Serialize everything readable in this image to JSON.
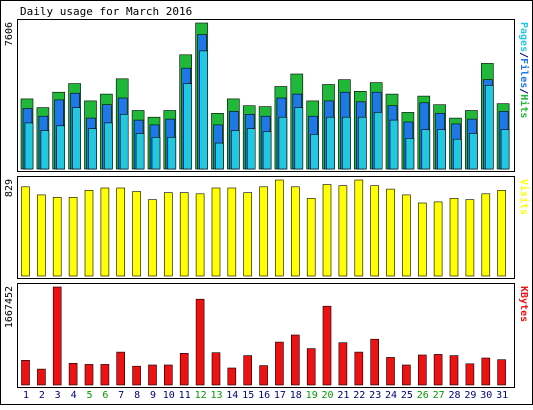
{
  "title": "Daily usage for March 2016",
  "colors": {
    "pages": "#22c8e0",
    "files": "#1f78e8",
    "hits": "#1fb838",
    "visits": "#ffff00",
    "kbytes": "#ee1111",
    "weekend_day": "#009900",
    "weekday_day": "#000080",
    "frame": "#000000",
    "panel_bg": "#ffffff"
  },
  "chart_data": [
    {
      "type": "bar",
      "title": "Daily usage for March 2016",
      "panel": "hits",
      "ymax_label": "7606",
      "ylim": [
        0,
        7606
      ],
      "right_label_parts": [
        {
          "text": "Pages",
          "color_key": "pages"
        },
        {
          "text": "/",
          "color_key": "weekday_day"
        },
        {
          "text": "Files",
          "color_key": "files"
        },
        {
          "text": "/",
          "color_key": "weekday_day"
        },
        {
          "text": "Hits",
          "color_key": "hits"
        }
      ],
      "categories": [
        "1",
        "2",
        "3",
        "4",
        "5",
        "6",
        "7",
        "8",
        "9",
        "10",
        "11",
        "12",
        "13",
        "14",
        "15",
        "16",
        "17",
        "18",
        "19",
        "20",
        "21",
        "22",
        "23",
        "24",
        "25",
        "26",
        "27",
        "28",
        "29",
        "30",
        "31"
      ],
      "series": [
        {
          "name": "Hits",
          "color_key": "hits",
          "values": [
            3650,
            3200,
            4000,
            4450,
            3550,
            3900,
            4700,
            3050,
            2700,
            3050,
            5950,
            7606,
            2900,
            3650,
            3300,
            3250,
            4300,
            4950,
            3550,
            4400,
            4650,
            4050,
            4500,
            3900,
            2950,
            3800,
            3350,
            2650,
            3050,
            5500,
            3400
          ]
        },
        {
          "name": "Files",
          "color_key": "files",
          "values": [
            3150,
            2750,
            3600,
            3950,
            2650,
            3350,
            3700,
            2550,
            2300,
            2600,
            5250,
            7000,
            2300,
            3000,
            2850,
            2750,
            3700,
            3900,
            2750,
            3550,
            4000,
            3500,
            4000,
            3300,
            2450,
            3450,
            2900,
            2350,
            2600,
            4650,
            3000
          ]
        },
        {
          "name": "Pages",
          "color_key": "pages",
          "values": [
            2400,
            2000,
            2250,
            3200,
            2100,
            2400,
            2850,
            1850,
            1650,
            1650,
            4450,
            6150,
            1350,
            2000,
            2100,
            1950,
            2700,
            3200,
            1800,
            2700,
            2700,
            2700,
            2950,
            2550,
            1600,
            2050,
            2050,
            1550,
            1850,
            4350,
            2050
          ]
        }
      ]
    },
    {
      "type": "bar",
      "panel": "visits",
      "ymax_label": "829",
      "ylim": [
        0,
        829
      ],
      "right_label_parts": [
        {
          "text": "Visits",
          "color_key": "visits"
        }
      ],
      "categories": [
        "1",
        "2",
        "3",
        "4",
        "5",
        "6",
        "7",
        "8",
        "9",
        "10",
        "11",
        "12",
        "13",
        "14",
        "15",
        "16",
        "17",
        "18",
        "19",
        "20",
        "21",
        "22",
        "23",
        "24",
        "25",
        "26",
        "27",
        "28",
        "29",
        "30",
        "31"
      ],
      "series": [
        {
          "name": "Visits",
          "color_key": "visits",
          "values": [
            770,
            700,
            680,
            680,
            740,
            760,
            760,
            730,
            660,
            720,
            720,
            710,
            760,
            760,
            720,
            770,
            829,
            770,
            670,
            790,
            780,
            829,
            780,
            750,
            700,
            630,
            640,
            670,
            660,
            710,
            740
          ]
        }
      ]
    },
    {
      "type": "bar",
      "panel": "kbytes",
      "ymax_label": "1667452",
      "ylim": [
        0,
        1667452
      ],
      "right_label_parts": [
        {
          "text": "KBytes",
          "color_key": "kbytes"
        }
      ],
      "categories": [
        "1",
        "2",
        "3",
        "4",
        "5",
        "6",
        "7",
        "8",
        "9",
        "10",
        "11",
        "12",
        "13",
        "14",
        "15",
        "16",
        "17",
        "18",
        "19",
        "20",
        "21",
        "22",
        "23",
        "24",
        "25",
        "26",
        "27",
        "28",
        "29",
        "30",
        "31"
      ],
      "series": [
        {
          "name": "KBytes",
          "color_key": "kbytes",
          "values": [
            420000,
            270000,
            1667452,
            370000,
            350000,
            350000,
            560000,
            320000,
            340000,
            340000,
            540000,
            1460000,
            550000,
            290000,
            500000,
            330000,
            730000,
            850000,
            620000,
            1340000,
            720000,
            560000,
            780000,
            470000,
            340000,
            510000,
            520000,
            500000,
            360000,
            460000,
            430000
          ]
        }
      ]
    }
  ],
  "day_labels": [
    {
      "text": "1",
      "weekend": false
    },
    {
      "text": "2",
      "weekend": false
    },
    {
      "text": "3",
      "weekend": false
    },
    {
      "text": "4",
      "weekend": false
    },
    {
      "text": "5",
      "weekend": true
    },
    {
      "text": "6",
      "weekend": true
    },
    {
      "text": "7",
      "weekend": false
    },
    {
      "text": "8",
      "weekend": false
    },
    {
      "text": "9",
      "weekend": false
    },
    {
      "text": "10",
      "weekend": false
    },
    {
      "text": "11",
      "weekend": false
    },
    {
      "text": "12",
      "weekend": true
    },
    {
      "text": "13",
      "weekend": true
    },
    {
      "text": "14",
      "weekend": false
    },
    {
      "text": "15",
      "weekend": false
    },
    {
      "text": "16",
      "weekend": false
    },
    {
      "text": "17",
      "weekend": false
    },
    {
      "text": "18",
      "weekend": false
    },
    {
      "text": "19",
      "weekend": true
    },
    {
      "text": "20",
      "weekend": true
    },
    {
      "text": "21",
      "weekend": false
    },
    {
      "text": "22",
      "weekend": false
    },
    {
      "text": "23",
      "weekend": false
    },
    {
      "text": "24",
      "weekend": false
    },
    {
      "text": "25",
      "weekend": false
    },
    {
      "text": "26",
      "weekend": true
    },
    {
      "text": "27",
      "weekend": true
    },
    {
      "text": "28",
      "weekend": false
    },
    {
      "text": "29",
      "weekend": false
    },
    {
      "text": "30",
      "weekend": false
    },
    {
      "text": "31",
      "weekend": false
    }
  ]
}
